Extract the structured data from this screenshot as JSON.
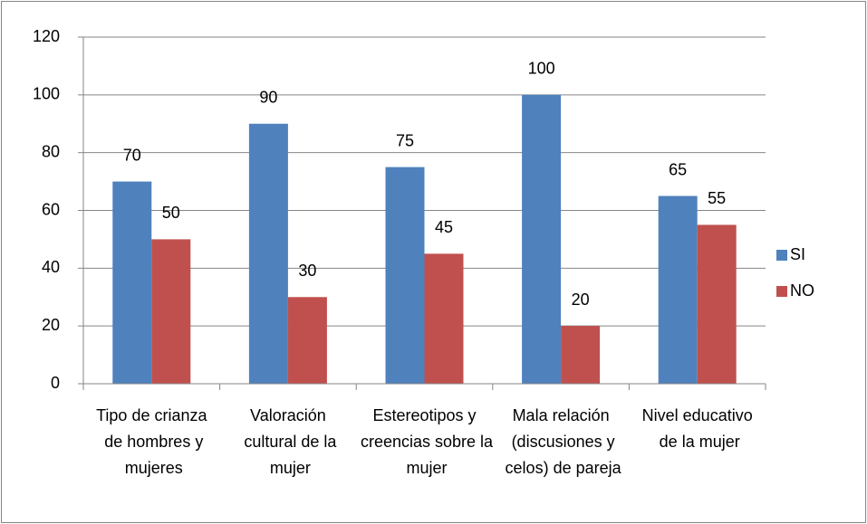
{
  "chart_data": {
    "type": "bar",
    "categories": [
      "Tipo de crianza de hombres y mujeres",
      "Valoración cultural de la mujer",
      "Estereotipos y creencias sobre la mujer",
      "Mala relación (discusiones y celos) de pareja",
      "Nivel educativo de la mujer"
    ],
    "series": [
      {
        "name": "SI",
        "color": "#4f81bd",
        "values": [
          70,
          90,
          75,
          100,
          65
        ]
      },
      {
        "name": "NO",
        "color": "#c0504d",
        "values": [
          50,
          30,
          45,
          20,
          55
        ]
      }
    ],
    "ylim": [
      0,
      120
    ],
    "yticks": [
      0,
      20,
      40,
      60,
      80,
      100,
      120
    ],
    "grid": true,
    "legend": "right"
  }
}
